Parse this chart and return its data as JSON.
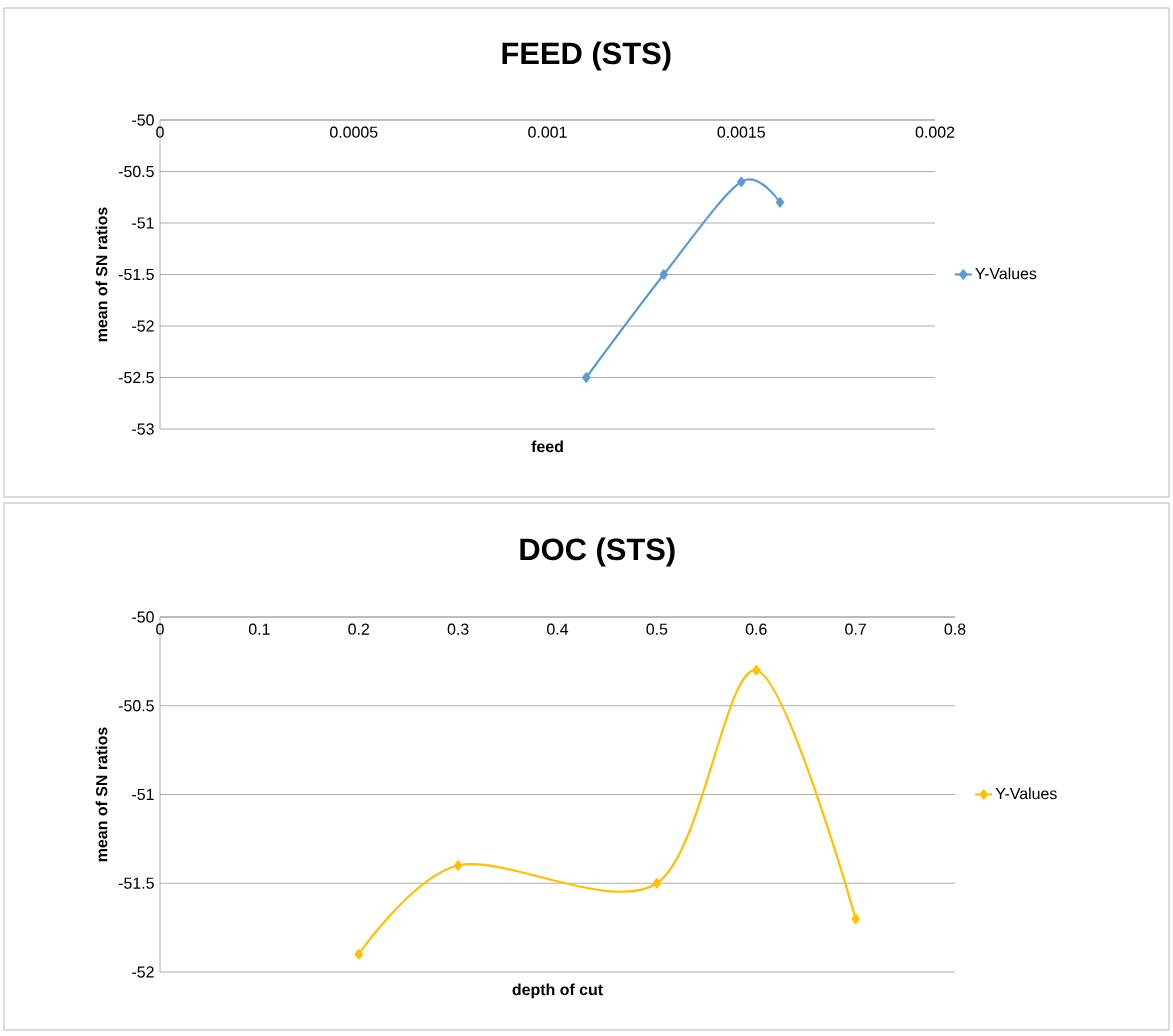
{
  "chart_data": [
    {
      "type": "line",
      "title": "FEED (STS)",
      "xlabel": "feed",
      "ylabel": "mean of SN ratios",
      "x": [
        0.0011,
        0.0013,
        0.0015,
        0.0016
      ],
      "series": [
        {
          "name": "Y-Values",
          "color": "#5b9bd5",
          "values": [
            -52.5,
            -51.5,
            -50.6,
            -50.8
          ]
        }
      ],
      "xlim": [
        0,
        0.002
      ],
      "xticks": [
        0,
        0.0005,
        0.001,
        0.0015,
        0.002
      ],
      "ylim": [
        -53,
        -50
      ],
      "yticks": [
        -53,
        -52.5,
        -52,
        -51.5,
        -51,
        -50.5,
        -50
      ],
      "grid": "y",
      "legend": "right",
      "marker": "diamond"
    },
    {
      "type": "line",
      "title": "DOC (STS)",
      "xlabel": "depth of cut",
      "ylabel": "mean of SN ratios",
      "x": [
        0.2,
        0.3,
        0.5,
        0.6,
        0.7
      ],
      "series": [
        {
          "name": "Y-Values",
          "color": "#ffc000",
          "values": [
            -51.9,
            -51.4,
            -51.5,
            -50.3,
            -51.7
          ]
        }
      ],
      "xlim": [
        0,
        0.8
      ],
      "xticks": [
        0,
        0.1,
        0.2,
        0.3,
        0.4,
        0.5,
        0.6,
        0.7,
        0.8
      ],
      "ylim": [
        -52,
        -50
      ],
      "yticks": [
        -52,
        -51.5,
        -51,
        -50.5,
        -50
      ],
      "grid": "y",
      "legend": "right",
      "marker": "diamond"
    }
  ]
}
